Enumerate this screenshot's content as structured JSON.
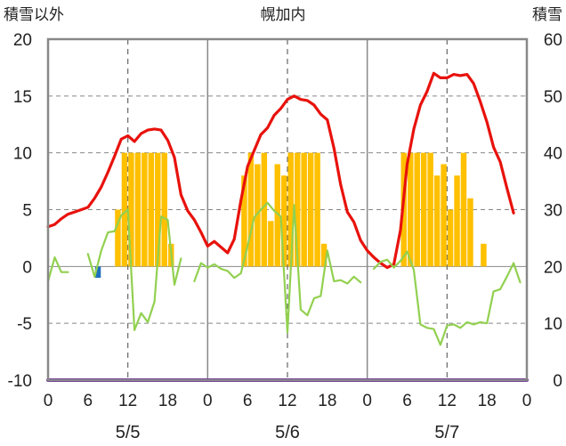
{
  "chart_data": {
    "type": "line+bar",
    "title": "幌加内",
    "left_axis_label": "積雪以外",
    "right_axis_label": "積雪",
    "left_ylim": [
      -10,
      20
    ],
    "left_yticks": [
      "20",
      "15",
      "10",
      "5",
      "0",
      "-5",
      "-10"
    ],
    "right_ylim": [
      0,
      60
    ],
    "right_yticks": [
      "60",
      "50",
      "40",
      "30",
      "20",
      "10",
      "0"
    ],
    "x_tick_labels": [
      "0",
      "6",
      "12",
      "18",
      "0",
      "6",
      "12",
      "18",
      "0",
      "6",
      "12",
      "18",
      "0"
    ],
    "x_ticks_hours": [
      0,
      6,
      12,
      18,
      24,
      30,
      36,
      42,
      48,
      54,
      60,
      66,
      72
    ],
    "day_labels": [
      "5/5",
      "5/6",
      "5/7"
    ],
    "xlim": [
      0,
      72
    ],
    "grid": "dashed vertical lines at 12h; horizontal lines at 5-unit steps",
    "colors": {
      "temperature": "#e8120c",
      "green_series": "#92d050",
      "bars": "#ffc000",
      "blue_marker": "#1f6fbf",
      "snow_depth": "#7030a0",
      "grid": "#888888",
      "frame": "#888888"
    },
    "series": [
      {
        "kind": "line",
        "axis": "left",
        "color": "#e8120c",
        "x": [
          0,
          1,
          2,
          3,
          4,
          5,
          6,
          7,
          8,
          9,
          10,
          11,
          12,
          13,
          14,
          15,
          16,
          17,
          18,
          19,
          20,
          21,
          22,
          23,
          24,
          25,
          26,
          27,
          28,
          29,
          30,
          31,
          32,
          33,
          34,
          35,
          36,
          37,
          38,
          39,
          40,
          41,
          42,
          43,
          44,
          45,
          46,
          47,
          48,
          49,
          50,
          51,
          52,
          53,
          54,
          55,
          56,
          57,
          58,
          59,
          60,
          61,
          62,
          63,
          64,
          65,
          66,
          67,
          68,
          69,
          70,
          71,
          72
        ],
        "y": [
          3.5,
          3.7,
          4.2,
          4.6,
          4.8,
          5.0,
          5.2,
          6.0,
          7.0,
          8.3,
          9.7,
          11.2,
          11.5,
          11.0,
          11.7,
          12.0,
          12.1,
          12.0,
          11.1,
          9.6,
          6.3,
          4.9,
          4.1,
          3.0,
          1.8,
          2.2,
          1.7,
          1.2,
          2.4,
          5.8,
          8.8,
          10.2,
          11.6,
          12.2,
          13.3,
          13.9,
          14.7,
          15.0,
          14.7,
          14.6,
          14.2,
          13.4,
          12.9,
          10.4,
          7.2,
          4.8,
          3.9,
          2.3,
          1.4,
          0.8,
          0.3,
          -0.1,
          0.2,
          3.2,
          9.0,
          12.1,
          14.2,
          15.4,
          17.0,
          16.6,
          16.6,
          16.9,
          16.8,
          16.9,
          16.1,
          14.5,
          12.7,
          10.5,
          9.2,
          6.9,
          4.7,
          null,
          null
        ]
      },
      {
        "kind": "line",
        "axis": "left",
        "color": "#92d050",
        "x": [
          0,
          1,
          2,
          3,
          4,
          5,
          6,
          7,
          8,
          9,
          10,
          11,
          12,
          13,
          14,
          15,
          16,
          17,
          18,
          19,
          20,
          21,
          22,
          23,
          24,
          25,
          26,
          27,
          28,
          29,
          30,
          31,
          32,
          33,
          34,
          35,
          36,
          37,
          38,
          39,
          40,
          41,
          42,
          43,
          44,
          45,
          46,
          47,
          48,
          49,
          50,
          51,
          52,
          53,
          54,
          55,
          56,
          57,
          58,
          59,
          60,
          61,
          62,
          63,
          64,
          65,
          66,
          67,
          68,
          69,
          70,
          71,
          72
        ],
        "y": [
          -1.3,
          0.8,
          -0.5,
          -0.5,
          null,
          null,
          1.1,
          -0.9,
          1.4,
          3.0,
          3.1,
          4.5,
          5.0,
          -5.6,
          -4.1,
          -4.9,
          -3.1,
          4.4,
          4.1,
          -1.6,
          0.7,
          null,
          -1.3,
          0.3,
          -0.1,
          0.2,
          -0.2,
          -0.4,
          -1.0,
          -0.6,
          1.8,
          4.3,
          5.0,
          5.6,
          4.9,
          4.4,
          -5.8,
          5.4,
          -3.8,
          -4.3,
          -2.8,
          -2.6,
          1.4,
          -1.3,
          -1.2,
          -1.5,
          -0.9,
          -1.4,
          null,
          -0.2,
          0.4,
          0.6,
          -0.1,
          0.5,
          1.3,
          -0.3,
          -5.1,
          -5.4,
          -5.5,
          -6.9,
          -5.2,
          -5.1,
          -5.4,
          -4.9,
          -5.1,
          -4.9,
          -5.0,
          -2.2,
          -2.0,
          -0.9,
          0.3,
          -1.4,
          null
        ]
      },
      {
        "kind": "bar",
        "axis": "left",
        "color": "#ffc000",
        "x": [
          10,
          11,
          12,
          13,
          14,
          15,
          16,
          17,
          18,
          29,
          30,
          31,
          32,
          33,
          34,
          35,
          36,
          37,
          38,
          39,
          40,
          41,
          53,
          54,
          55,
          56,
          57,
          58,
          59,
          60,
          61,
          62,
          63,
          65
        ],
        "y": [
          5,
          10,
          10,
          10,
          10,
          10,
          10,
          10,
          2,
          8,
          10,
          9,
          10,
          4,
          9,
          8,
          10,
          10,
          10,
          10,
          10,
          2,
          10,
          10,
          10,
          10,
          10,
          8,
          9,
          5,
          8,
          10,
          6,
          2
        ]
      },
      {
        "kind": "bar",
        "axis": "left",
        "color": "#1f6fbf",
        "x": [
          7
        ],
        "y": [
          -1
        ]
      },
      {
        "kind": "line",
        "axis": "right",
        "color": "#7030a0",
        "x": [
          0,
          72
        ],
        "y": [
          0,
          0
        ]
      }
    ]
  }
}
